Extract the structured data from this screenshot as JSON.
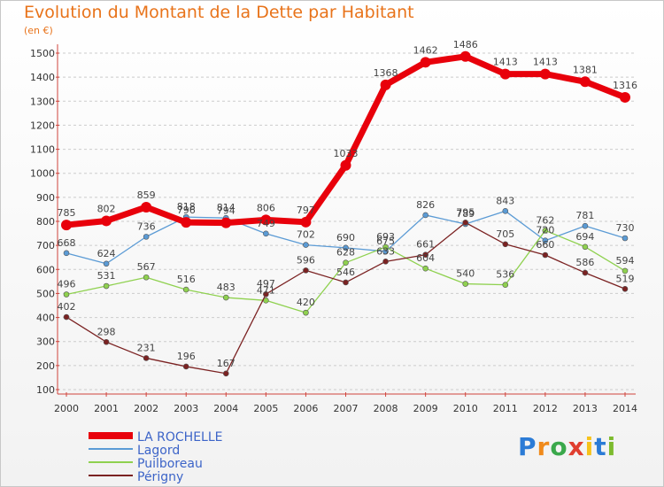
{
  "title": "Evolution du Montant de la Dette par Habitant",
  "unit": "(en €)",
  "logo_text": "Proxiti",
  "chart_data": {
    "type": "line",
    "x": [
      "2000",
      "2001",
      "2002",
      "2003",
      "2004",
      "2005",
      "2006",
      "2007",
      "2008",
      "2009",
      "2010",
      "2011",
      "2012",
      "2013",
      "2014"
    ],
    "ylim": [
      100,
      1500
    ],
    "yticks": [
      100,
      200,
      300,
      400,
      500,
      600,
      700,
      800,
      900,
      1000,
      1100,
      1200,
      1300,
      1400,
      1500
    ],
    "grid": "horizontal dashed",
    "legend_position": "bottom-left",
    "series": [
      {
        "name": "LA ROCHELLE",
        "color": "#e8000b",
        "values": [
          785,
          802,
          859,
          796,
          794,
          806,
          797,
          1033,
          1368,
          1462,
          1486,
          1413,
          1413,
          1381,
          1316
        ]
      },
      {
        "name": "Lagord",
        "color": "#5b9bd5",
        "values": [
          668,
          624,
          736,
          818,
          814,
          749,
          702,
          690,
          675,
          826,
          789,
          843,
          720,
          781,
          730
        ]
      },
      {
        "name": "Puilboreau",
        "color": "#8fd14f",
        "values": [
          496,
          531,
          567,
          516,
          483,
          471,
          420,
          628,
          693,
          604,
          540,
          536,
          762,
          694,
          594
        ]
      },
      {
        "name": "Périgny",
        "color": "#7b2222",
        "values": [
          402,
          298,
          231,
          196,
          167,
          497,
          596,
          546,
          633,
          661,
          795,
          705,
          660,
          586,
          519
        ]
      }
    ]
  }
}
